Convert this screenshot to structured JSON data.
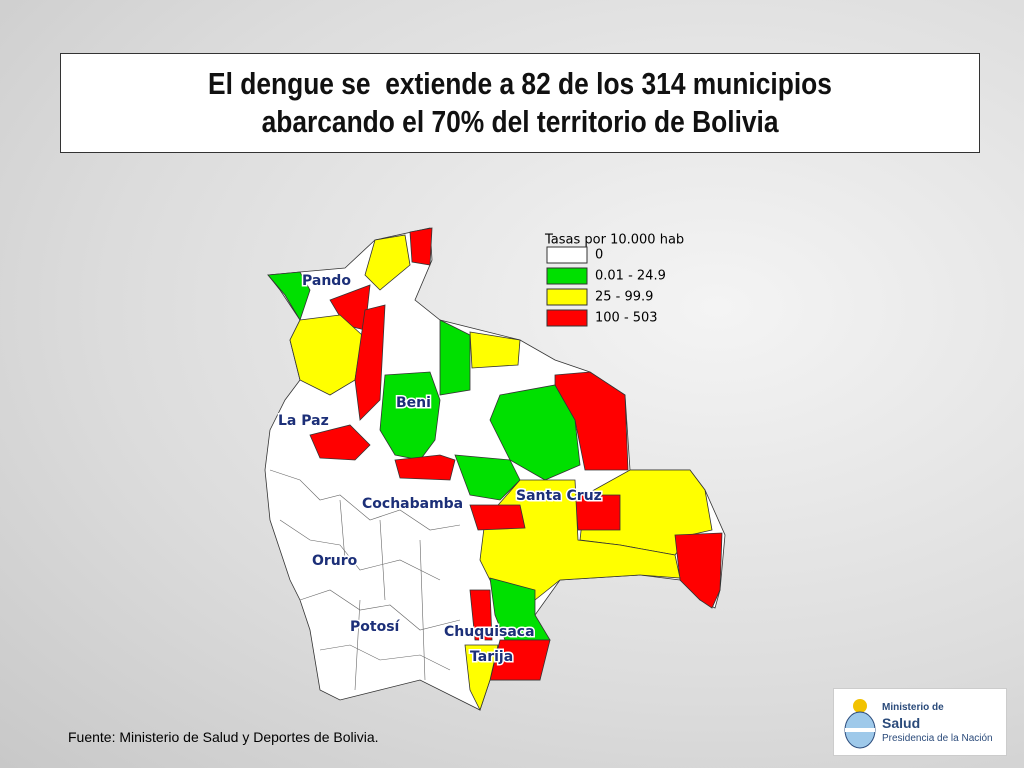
{
  "title": [
    "El dengue se  extiende a 82 de los 314 municipios",
    "abarcando el 70% del territorio de Bolivia"
  ],
  "legend": {
    "title": "Tasas por 10.000 hab",
    "items": [
      {
        "label": "0",
        "color": "#ffffff"
      },
      {
        "label": "0.01 - 24.9",
        "color": "#00e000"
      },
      {
        "label": "25 - 99.9",
        "color": "#ffff00"
      },
      {
        "label": "100 - 503",
        "color": "#ff0000"
      }
    ]
  },
  "map_labels": [
    "Pando",
    "La Paz",
    "Beni",
    "Cochabamba",
    "Oruro",
    "Santa Cruz",
    "Potosí",
    "Chuquisaca",
    "Tarija"
  ],
  "source": "Fuente: Ministerio de Salud y Deportes de Bolivia.",
  "logo": [
    "Ministerio de",
    "Salud",
    "Presidencia de la Nación"
  ]
}
